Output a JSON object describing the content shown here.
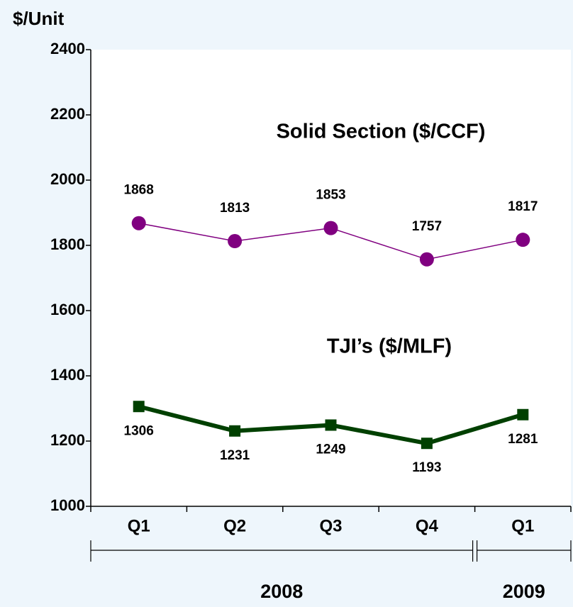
{
  "chart_data": {
    "type": "line",
    "y_axis_label": "$/Unit",
    "categories": [
      "Q1",
      "Q2",
      "Q3",
      "Q4",
      "Q1"
    ],
    "groups": [
      {
        "label": "2008",
        "count": 4
      },
      {
        "label": "2009",
        "count": 1
      }
    ],
    "series": [
      {
        "name": "Solid Section ($/CCF)",
        "color": "#800080",
        "marker": "circle",
        "values": [
          1868,
          1813,
          1853,
          1757,
          1817
        ]
      },
      {
        "name": "TJI’s ($/MLF)",
        "color": "#004000",
        "marker": "square",
        "values": [
          1306,
          1231,
          1249,
          1193,
          1281
        ]
      }
    ],
    "ylim": [
      1000,
      2400
    ],
    "yticks": [
      1000,
      1200,
      1400,
      1600,
      1800,
      2000,
      2200,
      2400
    ]
  }
}
